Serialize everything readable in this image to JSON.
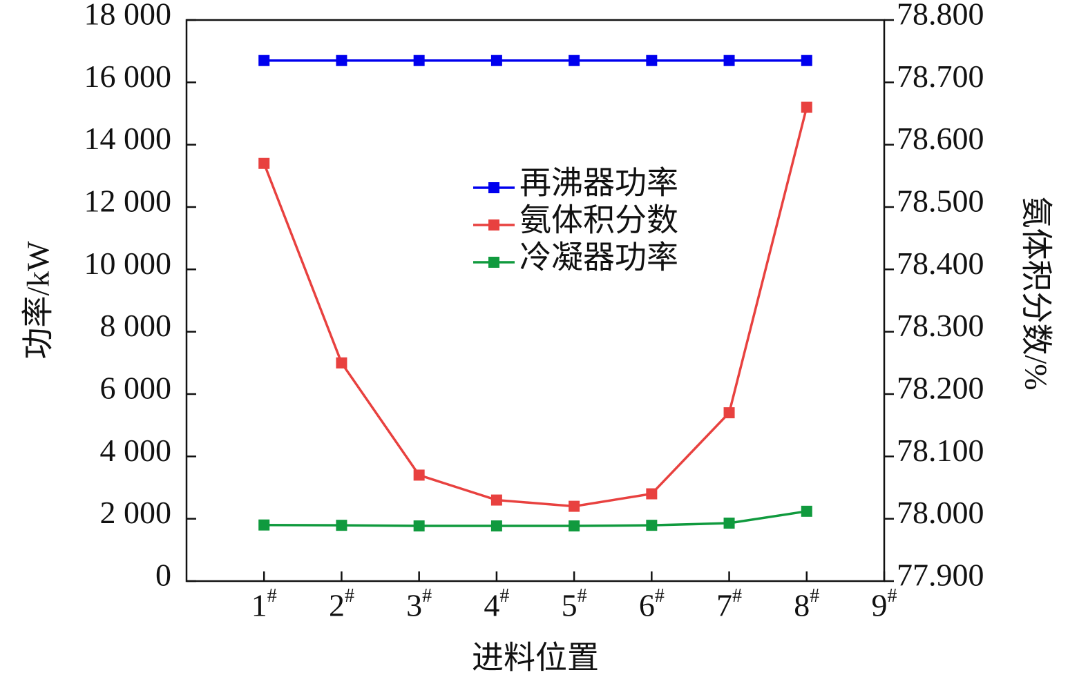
{
  "chart_data": {
    "type": "line",
    "x_label": "进料位置",
    "y_label": "功率/kW",
    "y2_label": "氨体积分数/%",
    "x": [
      1,
      2,
      3,
      4,
      5,
      6,
      7,
      8
    ],
    "xlim": [
      0,
      9
    ],
    "xticks": [
      {
        "value": 1,
        "label": "1#"
      },
      {
        "value": 2,
        "label": "2#"
      },
      {
        "value": 3,
        "label": "3#"
      },
      {
        "value": 4,
        "label": "4#"
      },
      {
        "value": 5,
        "label": "5#"
      },
      {
        "value": 6,
        "label": "6#"
      },
      {
        "value": 7,
        "label": "7#"
      },
      {
        "value": 8,
        "label": "8#"
      },
      {
        "value": 9,
        "label": "9#"
      }
    ],
    "ylim": [
      0,
      18000
    ],
    "yticks": [
      0,
      {
        "value": 2000,
        "label": "2 000"
      },
      {
        "value": 4000,
        "label": "4 000"
      },
      {
        "value": 6000,
        "label": "6 000"
      },
      {
        "value": 8000,
        "label": "8 000"
      },
      {
        "value": 10000,
        "label": "10 000"
      },
      {
        "value": 12000,
        "label": "12 000"
      },
      {
        "value": 14000,
        "label": "14 000"
      },
      {
        "value": 16000,
        "label": "16 000"
      },
      {
        "value": 18000,
        "label": "18 000"
      }
    ],
    "y2lim": [
      77.9,
      78.8
    ],
    "y2ticks": [
      {
        "value": 77.9,
        "label": "77.900"
      },
      {
        "value": 78.0,
        "label": "78.000"
      },
      {
        "value": 78.1,
        "label": "78.100"
      },
      {
        "value": 78.2,
        "label": "78.200"
      },
      {
        "value": 78.3,
        "label": "78.300"
      },
      {
        "value": 78.4,
        "label": "78.400"
      },
      {
        "value": 78.5,
        "label": "78.500"
      },
      {
        "value": 78.6,
        "label": "78.600"
      },
      {
        "value": 78.7,
        "label": "78.700"
      },
      {
        "value": 78.8,
        "label": "78.800"
      }
    ],
    "legend": "upper center",
    "series": [
      {
        "name": "再沸器功率",
        "color": "#0000ee",
        "values": [
          16700,
          16700,
          16700,
          16700,
          16700,
          16700,
          16700,
          16700
        ]
      },
      {
        "name": "氨体积分数",
        "color": "#e8413f",
        "axis": "y2",
        "values": [
          78.57,
          78.25,
          78.07,
          78.03,
          78.02,
          78.04,
          78.17,
          78.66
        ]
      },
      {
        "name": "冷凝器功率",
        "color": "#109a3e",
        "values": [
          1800,
          1790,
          1770,
          1770,
          1770,
          1790,
          1860,
          2240
        ]
      }
    ]
  }
}
